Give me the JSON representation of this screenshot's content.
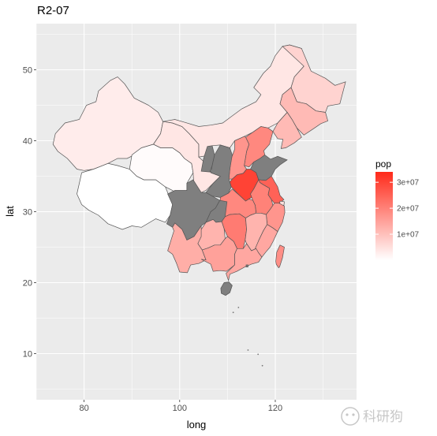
{
  "chart_data": {
    "type": "map",
    "title": "R2-07",
    "xlabel": "long",
    "ylabel": "lat",
    "xlim": [
      70,
      137
    ],
    "ylim": [
      3.5,
      56.5
    ],
    "x_ticks": [
      80,
      100,
      120
    ],
    "y_ticks": [
      10,
      20,
      30,
      40,
      50
    ],
    "legend": {
      "title": "pop",
      "placement": "right",
      "range": [
        0,
        34000000
      ],
      "breaks": [
        10000000,
        20000000,
        30000000
      ],
      "break_labels": [
        "1e+07",
        "2e+07",
        "3e+07"
      ],
      "low_color": "#ffffff",
      "high_color": "#ff2a1a"
    },
    "na_color": "#7f7f7f",
    "panel_background": "#ebebeb",
    "grid": true,
    "regions": [
      {
        "name": "Xinjiang",
        "pop": 3000000
      },
      {
        "name": "Tibet",
        "pop": 0
      },
      {
        "name": "Qinghai",
        "pop": 600000
      },
      {
        "name": "Gansu",
        "pop": 4000000
      },
      {
        "name": "Inner Mongolia",
        "pop": 4000000
      },
      {
        "name": "Heilongjiang",
        "pop": 7000000
      },
      {
        "name": "Jilin",
        "pop": 11000000
      },
      {
        "name": "Liaoning",
        "pop": 11000000
      },
      {
        "name": "Ningxia",
        "pop": null
      },
      {
        "name": "Shaanxi",
        "pop": null
      },
      {
        "name": "Shanxi",
        "pop": 17000000
      },
      {
        "name": "Hebei",
        "pop": 19000000
      },
      {
        "name": "Beijing",
        "pop": null
      },
      {
        "name": "Tianjin",
        "pop": null
      },
      {
        "name": "Shandong",
        "pop": null
      },
      {
        "name": "Henan",
        "pop": 30000000
      },
      {
        "name": "Jiangsu",
        "pop": 25000000
      },
      {
        "name": "Anhui",
        "pop": 20000000
      },
      {
        "name": "Shanghai",
        "pop": 5000000
      },
      {
        "name": "Zhejiang",
        "pop": 17000000
      },
      {
        "name": "Hubei",
        "pop": 19000000
      },
      {
        "name": "Sichuan",
        "pop": null
      },
      {
        "name": "Chongqing",
        "pop": null
      },
      {
        "name": "Hunan",
        "pop": 21000000
      },
      {
        "name": "Jiangxi",
        "pop": 12000000
      },
      {
        "name": "Fujian",
        "pop": 14000000
      },
      {
        "name": "Taiwan",
        "pop": 18000000
      },
      {
        "name": "Guizhou",
        "pop": 12000000
      },
      {
        "name": "Yunnan",
        "pop": 13000000
      },
      {
        "name": "Guangxi",
        "pop": 15000000
      },
      {
        "name": "Guangdong",
        "pop": 14000000
      },
      {
        "name": "Hong Kong",
        "pop": null
      },
      {
        "name": "Hainan",
        "pop": null
      }
    ]
  },
  "watermark": "科研狗"
}
